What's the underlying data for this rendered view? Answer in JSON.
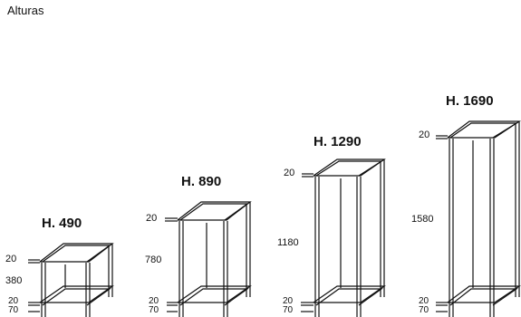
{
  "title": "Alturas",
  "units": [
    {
      "label": "H. 490",
      "top_dim": "20",
      "mid_dim": "380",
      "low_dim": "20",
      "foot_dim": "70"
    },
    {
      "label": "H. 890",
      "top_dim": "20",
      "mid_dim": "780",
      "low_dim": "20",
      "foot_dim": "70"
    },
    {
      "label": "H. 1290",
      "top_dim": "20",
      "mid_dim": "1180",
      "low_dim": "20",
      "foot_dim": "70"
    },
    {
      "label": "H. 1690",
      "top_dim": "20",
      "mid_dim": "1580",
      "low_dim": "20",
      "foot_dim": "70"
    }
  ]
}
